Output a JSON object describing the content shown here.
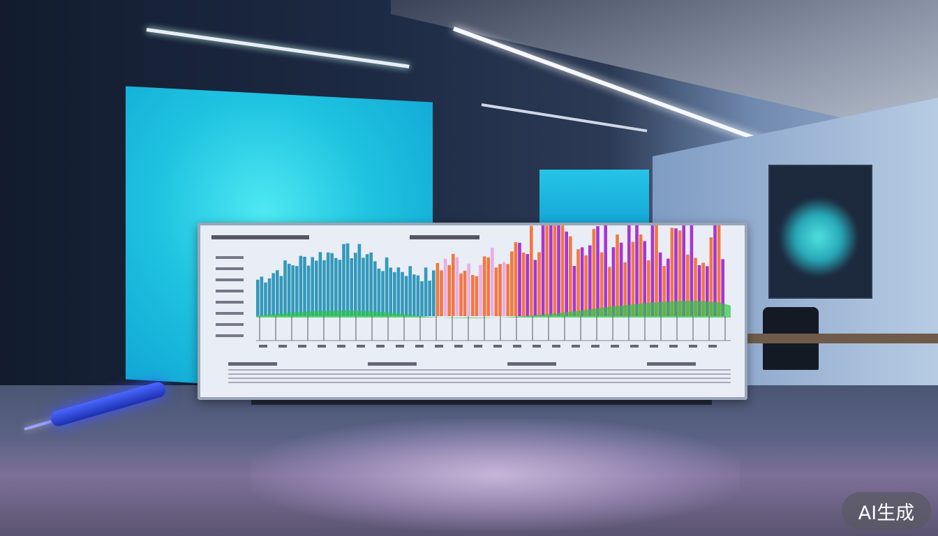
{
  "badge": {
    "label": "AI生成"
  },
  "colors": {
    "screen_cyan": "#1fc3e0",
    "chart_blue": "#1f8fb5",
    "chart_green": "#2fc44a",
    "chart_orange": "#f26a2e",
    "chart_pink": "#e7a6e8",
    "chart_purple": "#a11fd0",
    "pen_blue": "#2a3fe0"
  }
}
